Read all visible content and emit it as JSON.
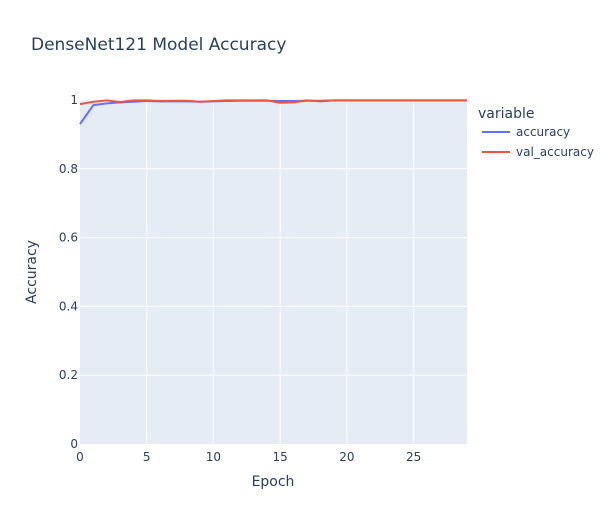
{
  "chart_data": {
    "type": "line",
    "title": "DenseNet121 Model Accuracy",
    "xlabel": "Epoch",
    "ylabel": "Accuracy",
    "xlim": [
      0,
      29
    ],
    "ylim": [
      0,
      1
    ],
    "x_ticks": [
      0,
      5,
      10,
      15,
      20,
      25
    ],
    "y_ticks": [
      0,
      0.2,
      0.4,
      0.6,
      0.8,
      1
    ],
    "y_tick_labels": [
      "0",
      "0.2",
      "0.4",
      "0.6",
      "0.8",
      "1"
    ],
    "grid": true,
    "legend_title": "variable",
    "legend_position": "right",
    "x": [
      0,
      1,
      2,
      3,
      4,
      5,
      6,
      7,
      8,
      9,
      10,
      11,
      12,
      13,
      14,
      15,
      16,
      17,
      18,
      19,
      20,
      21,
      22,
      23,
      24,
      25,
      26,
      27,
      28,
      29
    ],
    "series": [
      {
        "name": "accuracy",
        "color": "#636efa",
        "values": [
          0.93,
          0.985,
          0.99,
          0.993,
          0.995,
          0.997,
          0.996,
          0.996,
          0.996,
          0.995,
          0.996,
          0.997,
          0.998,
          0.998,
          0.998,
          0.997,
          0.997,
          0.998,
          0.998,
          0.999,
          0.999,
          0.999,
          0.999,
          0.999,
          0.999,
          0.999,
          0.999,
          0.999,
          0.999,
          0.999
        ]
      },
      {
        "name": "val_accuracy",
        "color": "#ef553b",
        "values": [
          0.988,
          0.995,
          0.999,
          0.994,
          0.999,
          0.999,
          0.997,
          0.998,
          0.998,
          0.995,
          0.997,
          0.999,
          0.999,
          0.999,
          0.999,
          0.992,
          0.993,
          0.999,
          0.996,
          0.999,
          0.999,
          0.999,
          0.999,
          0.999,
          0.999,
          0.999,
          0.999,
          0.999,
          0.999,
          0.999
        ]
      }
    ],
    "colors": {
      "plot_bg": "#e5ecf6",
      "grid": "#ffffff",
      "text": "#2a3f5f"
    }
  }
}
